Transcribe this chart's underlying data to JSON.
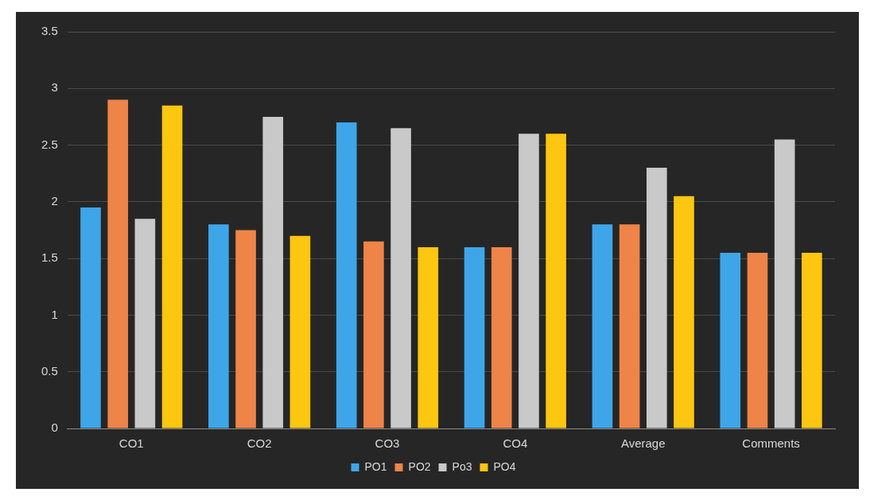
{
  "chart_data": {
    "type": "bar",
    "categories": [
      "CO1",
      "CO2",
      "CO3",
      "CO4",
      "Average",
      "Comments"
    ],
    "series": [
      {
        "name": "PO1",
        "color": "#3ea6e8",
        "values": [
          1.95,
          1.8,
          2.7,
          1.6,
          1.8,
          1.55
        ]
      },
      {
        "name": "PO2",
        "color": "#ee8447",
        "values": [
          2.9,
          1.75,
          1.65,
          1.6,
          1.8,
          1.55
        ]
      },
      {
        "name": "Po3",
        "color": "#c9c9c9",
        "values": [
          1.85,
          2.75,
          2.65,
          2.6,
          2.3,
          2.55
        ]
      },
      {
        "name": "PO4",
        "color": "#fdc610",
        "values": [
          2.85,
          1.7,
          1.6,
          2.6,
          2.05,
          1.55
        ]
      }
    ],
    "ylim": [
      0,
      3.5
    ],
    "yticks": [
      0,
      0.5,
      1,
      1.5,
      2,
      2.5,
      3,
      3.5
    ],
    "grid": "y",
    "legend": "bottom"
  }
}
